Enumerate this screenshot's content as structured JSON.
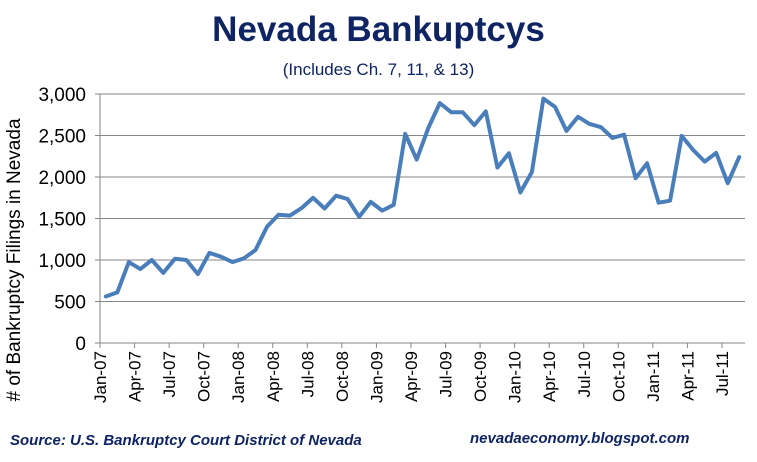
{
  "header": {
    "title": "Nevada Bankuptcys",
    "subtitle": "(Includes Ch. 7, 11, & 13)"
  },
  "footer": {
    "source": "Source: U.S. Bankruptcy Court District of Nevada",
    "site": "nevadaeconomy.blogspot.com"
  },
  "colors": {
    "title": "#0f2463",
    "line": "#4a7ebb",
    "grid": "#868686",
    "axis": "#868686",
    "text": "#000000"
  },
  "chart_data": {
    "type": "line",
    "title": "Nevada Bankuptcys",
    "subtitle": "(Includes Ch. 7, 11, & 13)",
    "xlabel": "",
    "ylabel": "# of Bankruptcy Filings in Nevada",
    "ylim": [
      0,
      3000
    ],
    "yticks": [
      0,
      500,
      1000,
      1500,
      2000,
      2500,
      3000
    ],
    "ytick_labels": [
      "0",
      "500",
      "1,000",
      "1,500",
      "2,000",
      "2,500",
      "3,000"
    ],
    "grid": true,
    "legend": null,
    "xtick_labels": [
      "Jan-07",
      "Apr-07",
      "Jul-07",
      "Oct-07",
      "Jan-08",
      "Apr-08",
      "Jul-08",
      "Oct-08",
      "Jan-09",
      "Apr-09",
      "Jul-09",
      "Oct-09",
      "Jan-10",
      "Apr-10",
      "Jul-10",
      "Oct-10",
      "Jan-11",
      "Apr-11",
      "Jul-11"
    ],
    "categories": [
      "Jan-07",
      "Feb-07",
      "Mar-07",
      "Apr-07",
      "May-07",
      "Jun-07",
      "Jul-07",
      "Aug-07",
      "Sep-07",
      "Oct-07",
      "Nov-07",
      "Dec-07",
      "Jan-08",
      "Feb-08",
      "Mar-08",
      "Apr-08",
      "May-08",
      "Jun-08",
      "Jul-08",
      "Aug-08",
      "Sep-08",
      "Oct-08",
      "Nov-08",
      "Dec-08",
      "Jan-09",
      "Feb-09",
      "Mar-09",
      "Apr-09",
      "May-09",
      "Jun-09",
      "Jul-09",
      "Aug-09",
      "Sep-09",
      "Oct-09",
      "Nov-09",
      "Dec-09",
      "Jan-10",
      "Feb-10",
      "Mar-10",
      "Apr-10",
      "May-10",
      "Jun-10",
      "Jul-10",
      "Aug-10",
      "Sep-10",
      "Oct-10",
      "Nov-10",
      "Dec-10",
      "Jan-11",
      "Feb-11",
      "Mar-11",
      "Apr-11",
      "May-11",
      "Jun-11",
      "Jul-11",
      "Aug-11"
    ],
    "series": [
      {
        "name": "Bankruptcy Filings",
        "values": [
          560,
          610,
          975,
          890,
          1000,
          845,
          1015,
          1000,
          830,
          1085,
          1040,
          975,
          1020,
          1120,
          1400,
          1545,
          1535,
          1625,
          1750,
          1620,
          1775,
          1735,
          1520,
          1700,
          1595,
          1665,
          2520,
          2210,
          2590,
          2890,
          2780,
          2780,
          2625,
          2790,
          2115,
          2285,
          1815,
          2060,
          2945,
          2845,
          2555,
          2725,
          2640,
          2600,
          2470,
          2510,
          1985,
          2165,
          1690,
          1715,
          2495,
          2325,
          2185,
          2290,
          1925,
          2240
        ]
      }
    ]
  }
}
